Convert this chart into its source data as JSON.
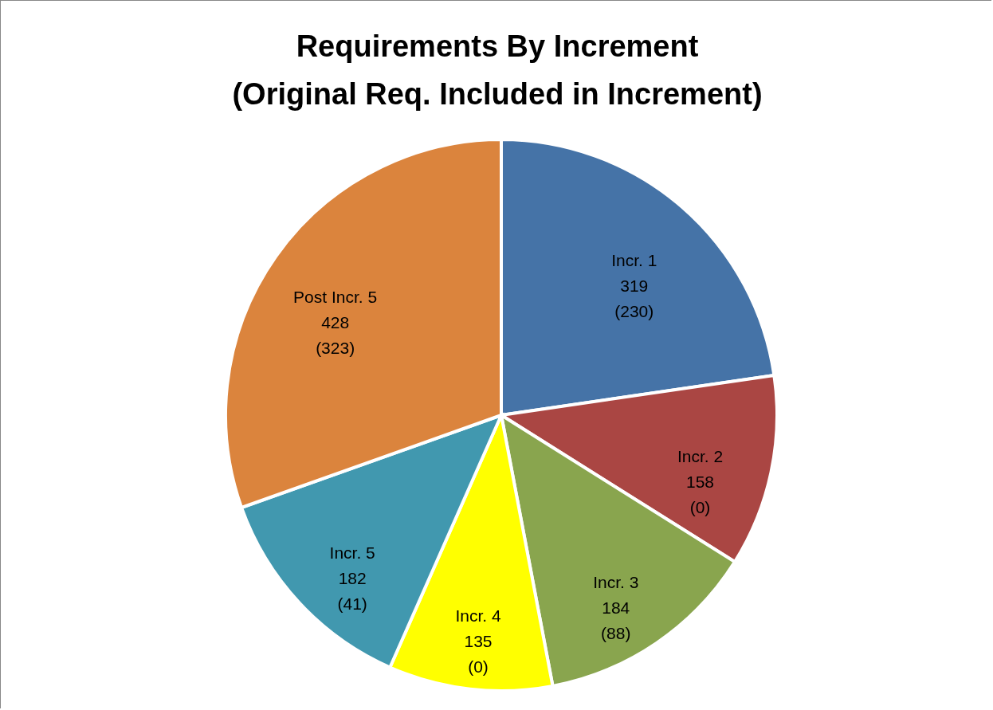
{
  "chart_data": {
    "type": "pie",
    "title": "Requirements By Increment\n(Original Req. Included in Increment)",
    "categories": [
      "Incr. 1",
      "Incr. 2",
      "Incr. 3",
      "Incr. 4",
      "Incr. 5",
      "Post Incr. 5"
    ],
    "values": [
      319,
      158,
      184,
      135,
      182,
      428
    ],
    "value_labels": [
      "319\n(230)",
      "158\n(0)",
      "184\n(88)",
      "135\n(0)",
      "182\n(41)",
      "428\n(323)"
    ],
    "colors": [
      "#4573a7",
      "#aa4643",
      "#89a54e",
      "#ffff00",
      "#4198af",
      "#db843d"
    ],
    "legend": false
  }
}
